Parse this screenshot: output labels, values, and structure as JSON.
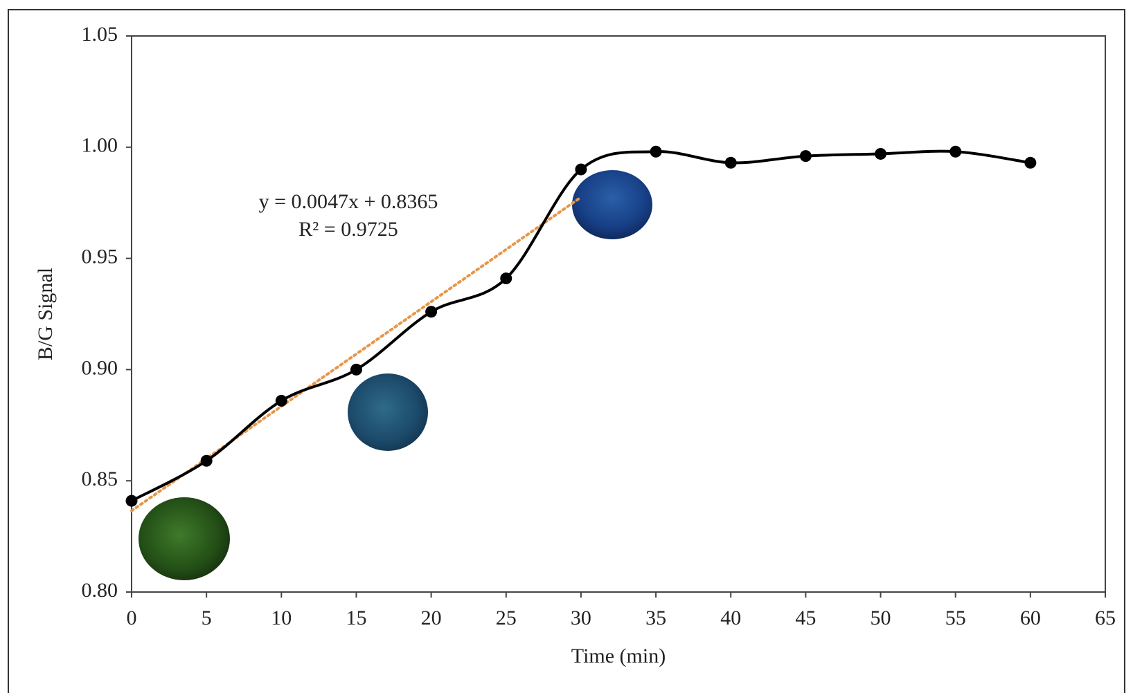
{
  "chart_data": {
    "type": "line",
    "x_label": "Time (min)",
    "y_label": "B/G Signal",
    "x": [
      0,
      5,
      10,
      15,
      20,
      25,
      30,
      35,
      40,
      45,
      50,
      55,
      60
    ],
    "series": [
      {
        "color": "#000000",
        "values": [
          0.841,
          0.859,
          0.886,
          0.9,
          0.926,
          0.941,
          0.99,
          0.998,
          0.993,
          0.996,
          0.997,
          0.998,
          0.993
        ]
      }
    ],
    "trendline": {
      "slope": 0.0047,
      "intercept": 0.8365,
      "x": [
        0,
        30
      ],
      "color": "#e8964a"
    },
    "annotations": [
      "y = 0.0047x + 0.8365",
      "R² = 0.9725"
    ],
    "xlim": [
      0,
      65
    ],
    "xticks": [
      0,
      5,
      10,
      15,
      20,
      25,
      30,
      35,
      40,
      45,
      50,
      55,
      60,
      65
    ],
    "ylim": [
      0.8,
      1.05
    ],
    "yticks": [
      {
        "value": 0.8,
        "label": "0.80"
      },
      0.85,
      {
        "value": 0.9,
        "label": "0.90"
      },
      0.95,
      {
        "value": 1.0,
        "label": "1.00"
      },
      1.05
    ],
    "grid": false
  }
}
